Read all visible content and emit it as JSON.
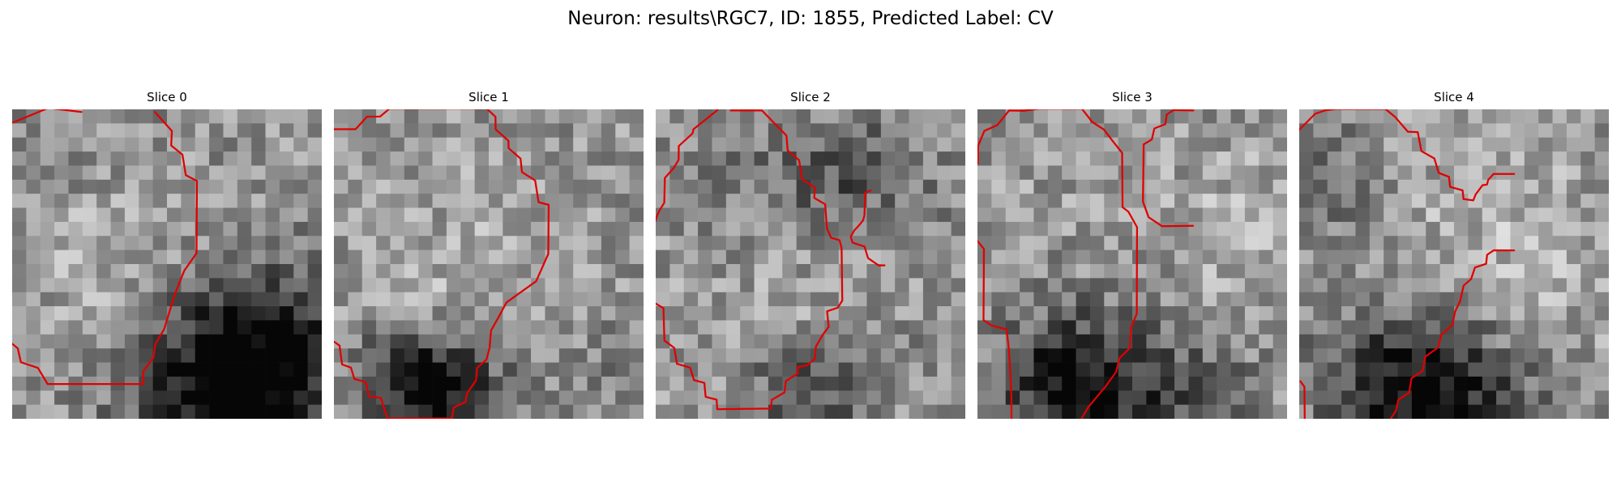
{
  "figure": {
    "title": "Neuron: results\\RGC7, ID: 1855, Predicted Label: CV"
  },
  "contour_color": "#e00000",
  "panels": [
    {
      "title": "Slice 0",
      "contours": [
        [
          [
            0.03,
            0.95
          ],
          [
            2.57,
            -0.1
          ],
          [
            4.93,
            0.19
          ]
        ],
        [
          [
            10.14,
            0.19
          ],
          [
            11.35,
            1.54
          ],
          [
            11.3,
            2.57
          ],
          [
            12.1,
            3.22
          ],
          [
            12.34,
            4.68
          ],
          [
            13.13,
            5.09
          ],
          [
            13.1,
            10.23
          ],
          [
            12.23,
            11.47
          ],
          [
            11.58,
            13.1
          ],
          [
            11.3,
            13.99
          ],
          [
            10.8,
            15.63
          ],
          [
            10.17,
            16.7
          ],
          [
            10.04,
            17.65
          ],
          [
            9.32,
            18.61
          ],
          [
            9.32,
            19.53
          ],
          [
            2.52,
            19.53
          ],
          [
            1.83,
            18.38
          ],
          [
            0.62,
            17.98
          ],
          [
            0.4,
            16.99
          ],
          [
            -0.04,
            16.64
          ]
        ]
      ]
    },
    {
      "title": "Slice 1",
      "contours": [
        [
          [
            0.0,
            1.41
          ],
          [
            1.54,
            1.41
          ],
          [
            2.35,
            0.52
          ],
          [
            3.28,
            0.51
          ],
          [
            3.95,
            -0.05
          ],
          [
            10.86,
            -0.05
          ],
          [
            11.48,
            0.53
          ],
          [
            11.49,
            1.42
          ],
          [
            12.4,
            2.23
          ],
          [
            12.41,
            2.76
          ],
          [
            13.26,
            3.5
          ],
          [
            13.36,
            4.46
          ],
          [
            14.3,
            5.06
          ],
          [
            14.54,
            6.6
          ],
          [
            15.26,
            6.79
          ],
          [
            15.23,
            10.28
          ],
          [
            14.37,
            12.22
          ],
          [
            12.26,
            13.73
          ],
          [
            11.66,
            14.85
          ],
          [
            11.16,
            15.73
          ],
          [
            11.06,
            16.96
          ],
          [
            10.84,
            17.79
          ],
          [
            10.17,
            18.39
          ],
          [
            10.1,
            19.27
          ],
          [
            9.45,
            20.2
          ],
          [
            9.35,
            20.8
          ],
          [
            8.51,
            21.2
          ],
          [
            8.39,
            21.98
          ],
          [
            3.81,
            21.98
          ],
          [
            3.54,
            21.18
          ],
          [
            3.34,
            20.52
          ],
          [
            2.49,
            20.41
          ],
          [
            2.26,
            19.39
          ],
          [
            1.45,
            19.17
          ],
          [
            1.21,
            18.36
          ],
          [
            0.58,
            18.14
          ],
          [
            0.4,
            16.8
          ],
          [
            0.03,
            16.53
          ]
        ]
      ]
    },
    {
      "title": "Slice 2",
      "contours": [
        [
          [
            5.33,
            0.08
          ],
          [
            7.55,
            0.08
          ],
          [
            8.51,
            1.07
          ],
          [
            9.29,
            1.86
          ],
          [
            9.38,
            2.93
          ],
          [
            10.19,
            3.61
          ],
          [
            10.41,
            4.99
          ],
          [
            11.3,
            5.54
          ],
          [
            11.27,
            6.3
          ],
          [
            12.04,
            6.75
          ],
          [
            12.17,
            8.46
          ],
          [
            12.46,
            9.13
          ],
          [
            13.06,
            9.3
          ],
          [
            13.21,
            9.85
          ],
          [
            13.26,
            13.6
          ],
          [
            12.94,
            14.1
          ],
          [
            12.18,
            14.36
          ],
          [
            12.29,
            15.47
          ],
          [
            11.92,
            15.95
          ],
          [
            11.38,
            16.87
          ],
          [
            11.31,
            17.74
          ],
          [
            10.76,
            18.2
          ],
          [
            10.1,
            18.32
          ],
          [
            10.1,
            18.78
          ],
          [
            9.25,
            19.32
          ],
          [
            9.15,
            20.13
          ],
          [
            8.25,
            20.65
          ],
          [
            8.19,
            21.27
          ],
          [
            4.37,
            21.32
          ],
          [
            4.33,
            20.64
          ],
          [
            3.55,
            20.44
          ],
          [
            3.46,
            19.45
          ],
          [
            2.72,
            19.25
          ],
          [
            2.45,
            18.37
          ],
          [
            1.51,
            18.09
          ],
          [
            1.32,
            16.96
          ],
          [
            0.62,
            16.44
          ],
          [
            0.55,
            14.14
          ],
          [
            0.01,
            13.81
          ]
        ],
        [
          [
            4.39,
            0.05
          ],
          [
            2.68,
            1.42
          ],
          [
            2.62,
            1.71
          ],
          [
            1.64,
            2.61
          ],
          [
            1.63,
            3.59
          ],
          [
            1.29,
            4.16
          ],
          [
            0.65,
            4.88
          ],
          [
            0.61,
            6.64
          ],
          [
            0.26,
            7.2
          ],
          [
            0.11,
            7.54
          ],
          [
            -0.05,
            7.99
          ]
        ],
        [
          [
            15.28,
            5.77
          ],
          [
            14.89,
            5.92
          ],
          [
            14.89,
            6.13
          ],
          [
            14.83,
            7.55
          ],
          [
            14.73,
            7.9
          ],
          [
            14.42,
            8.28
          ],
          [
            14.11,
            8.61
          ],
          [
            13.86,
            9.06
          ],
          [
            13.98,
            9.47
          ],
          [
            14.84,
            9.76
          ],
          [
            15.09,
            10.58
          ],
          [
            15.84,
            11.1
          ],
          [
            16.26,
            11.09
          ]
        ]
      ]
    },
    {
      "title": "Slice 3",
      "contours": [
        [
          [
            0.02,
            3.88
          ],
          [
            0.04,
            2.61
          ],
          [
            0.49,
            1.53
          ],
          [
            1.41,
            1.12
          ],
          [
            2.25,
            0.08
          ],
          [
            3.28,
            0.1
          ],
          [
            4.35,
            -0.04
          ],
          [
            7.42,
            -0.04
          ],
          [
            8.16,
            0.9
          ],
          [
            8.99,
            1.44
          ],
          [
            9.78,
            2.47
          ],
          [
            10.28,
            3.09
          ],
          [
            10.31,
            6.96
          ],
          [
            10.72,
            7.27
          ],
          [
            11.34,
            8.38
          ],
          [
            11.32,
            14.53
          ],
          [
            10.92,
            15.49
          ],
          [
            10.82,
            16.98
          ],
          [
            10.11,
            17.67
          ],
          [
            9.84,
            18.68
          ],
          [
            9.06,
            19.77
          ],
          [
            8.76,
            20.11
          ],
          [
            7.89,
            21.15
          ],
          [
            7.41,
            21.96
          ]
        ],
        [
          [
            15.34,
            0.08
          ],
          [
            13.93,
            0.05
          ],
          [
            13.45,
            0.37
          ],
          [
            13.35,
            1.05
          ],
          [
            12.57,
            1.36
          ],
          [
            12.39,
            2.14
          ],
          [
            11.81,
            2.49
          ],
          [
            11.76,
            6.57
          ],
          [
            12.16,
            7.67
          ],
          [
            13.12,
            8.31
          ],
          [
            15.32,
            8.28
          ]
        ],
        [
          [
            0.03,
            9.39
          ],
          [
            0.46,
            9.93
          ],
          [
            0.43,
            14.98
          ],
          [
            0.97,
            15.35
          ],
          [
            2.07,
            15.65
          ],
          [
            2.23,
            17.04
          ],
          [
            2.33,
            18.66
          ],
          [
            2.41,
            20.45
          ],
          [
            2.42,
            21.99
          ]
        ]
      ]
    },
    {
      "title": "Slice 4",
      "contours": [
        [
          [
            -0.01,
            1.46
          ],
          [
            1.14,
            0.31
          ],
          [
            1.81,
            0.08
          ],
          [
            2.59,
            -0.03
          ],
          [
            6.12,
            -0.03
          ],
          [
            6.81,
            0.54
          ],
          [
            7.72,
            1.59
          ],
          [
            8.42,
            1.62
          ],
          [
            8.68,
            2.97
          ],
          [
            9.6,
            3.49
          ],
          [
            9.91,
            4.52
          ],
          [
            10.64,
            4.8
          ],
          [
            10.72,
            5.51
          ],
          [
            11.61,
            5.76
          ],
          [
            11.67,
            6.38
          ],
          [
            12.37,
            6.47
          ],
          [
            12.54,
            6.04
          ],
          [
            13.03,
            5.39
          ],
          [
            13.34,
            5.35
          ],
          [
            13.43,
            5.01
          ],
          [
            13.81,
            4.59
          ],
          [
            15.27,
            4.59
          ]
        ],
        [
          [
            15.27,
            10.03
          ],
          [
            13.83,
            10.02
          ],
          [
            13.35,
            10.34
          ],
          [
            13.28,
            10.98
          ],
          [
            12.49,
            11.24
          ],
          [
            12.21,
            12.07
          ],
          [
            11.68,
            12.53
          ],
          [
            11.44,
            13.61
          ],
          [
            11.07,
            14.4
          ],
          [
            10.87,
            15.37
          ],
          [
            10.11,
            16.01
          ],
          [
            9.86,
            16.94
          ],
          [
            8.95,
            17.59
          ],
          [
            8.78,
            18.59
          ],
          [
            7.98,
            19.12
          ],
          [
            7.81,
            20.14
          ],
          [
            7.04,
            20.65
          ],
          [
            6.87,
            21.43
          ],
          [
            6.52,
            21.96
          ]
        ],
        [
          [
            0.08,
            19.33
          ],
          [
            0.37,
            19.73
          ],
          [
            0.39,
            21.97
          ]
        ]
      ]
    }
  ]
}
